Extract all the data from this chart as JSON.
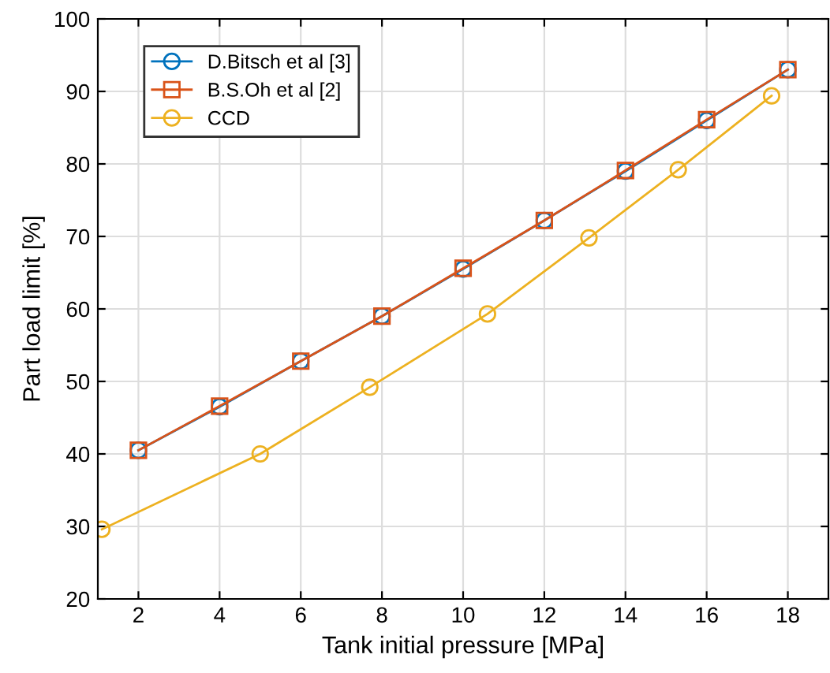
{
  "chart_data": {
    "type": "line",
    "xlabel": "Tank initial pressure [MPa]",
    "ylabel": "Part load limit [%]",
    "xlim": [
      1,
      19
    ],
    "xticks": [
      2,
      4,
      6,
      8,
      10,
      12,
      14,
      16,
      18
    ],
    "ylim": [
      20,
      100
    ],
    "yticks": [
      20,
      30,
      40,
      50,
      60,
      70,
      80,
      90,
      100
    ],
    "grid": true,
    "legend": "top left",
    "series": [
      {
        "name": "D.Bitsch et al [3]",
        "color": "#0072bd",
        "marker": "circle",
        "x": [
          2,
          4,
          6,
          8,
          10,
          12,
          14,
          16,
          18
        ],
        "values": [
          40.5,
          46.5,
          52.8,
          59,
          65.5,
          72.2,
          79,
          86,
          93
        ]
      },
      {
        "name": "B.S.Oh et al [2]",
        "color": "#d95319",
        "marker": "square",
        "x": [
          2,
          4,
          6,
          8,
          10,
          12,
          14,
          16,
          18
        ],
        "values": [
          40.5,
          46.6,
          52.8,
          59,
          65.6,
          72.2,
          79.1,
          86.1,
          93
        ]
      },
      {
        "name": "CCD",
        "color": "#edb120",
        "marker": "circle",
        "x": [
          1.1,
          5,
          7.7,
          10.6,
          13.1,
          15.3,
          17.6
        ],
        "values": [
          29.6,
          40,
          49.2,
          59.3,
          69.8,
          79.2,
          89.4
        ]
      }
    ]
  }
}
